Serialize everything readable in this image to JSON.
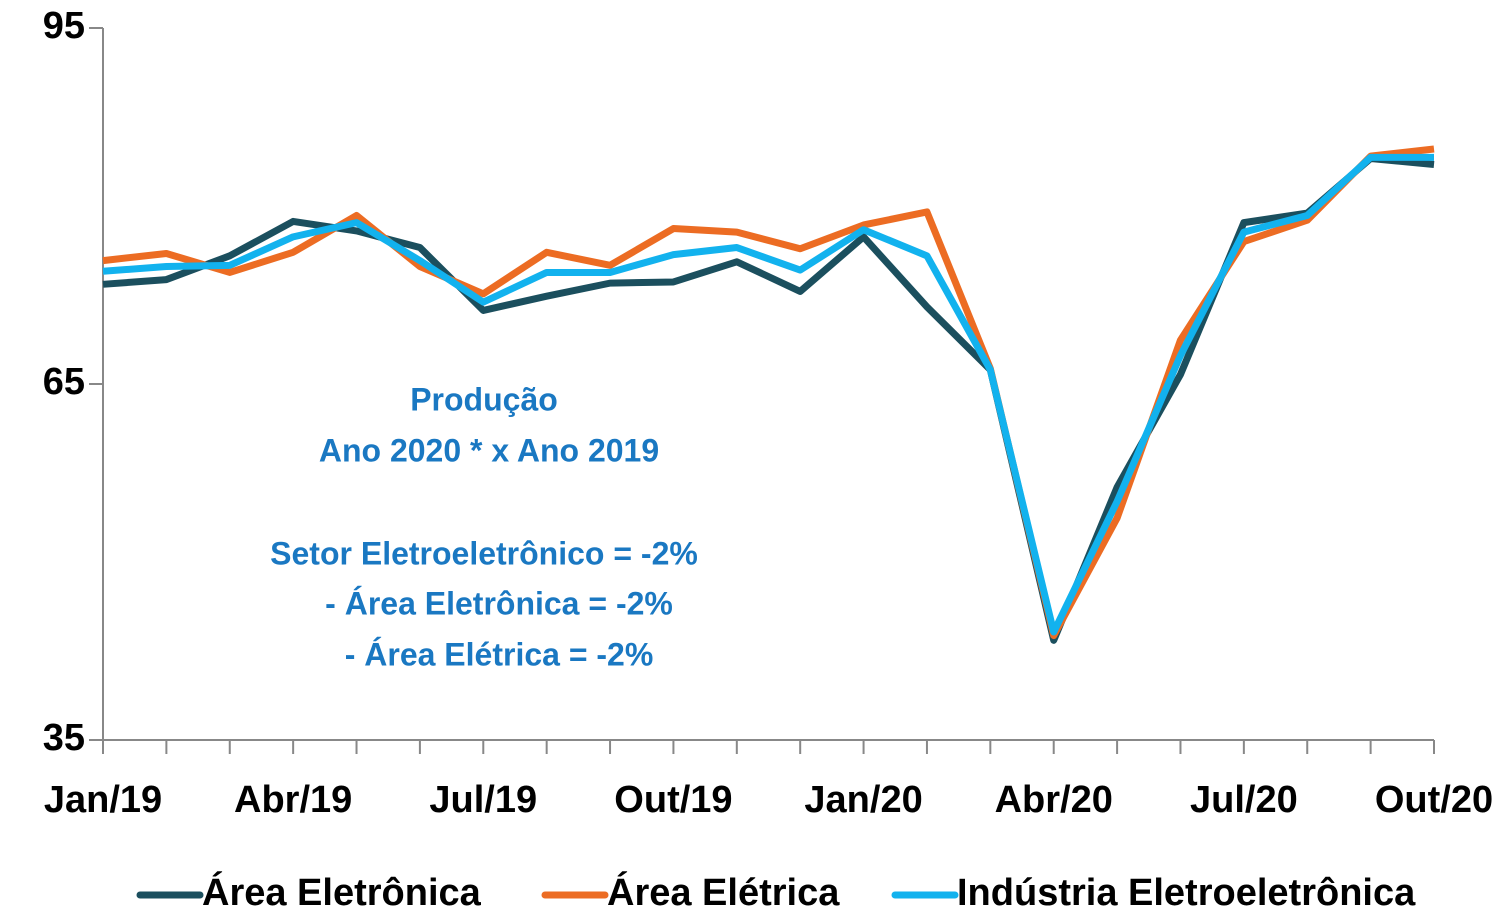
{
  "chart_data": {
    "type": "line",
    "categories": [
      "Jan/19",
      null,
      null,
      "Abr/19",
      null,
      null,
      "Jul/19",
      null,
      null,
      "Out/19",
      null,
      null,
      "Jan/20",
      null,
      null,
      "Abr/20",
      null,
      null,
      "Jul/20",
      null,
      null,
      "Out/20"
    ],
    "series": [
      {
        "name": "Área Eletrônica",
        "color": "#1b4f5e",
        "values": [
          73.4,
          73.8,
          75.8,
          78.7,
          77.9,
          76.5,
          71.2,
          72.4,
          73.5,
          73.6,
          75.3,
          72.8,
          77.4,
          71.5,
          66.2,
          43.4,
          56.3,
          65.8,
          78.6,
          79.4,
          84.0,
          83.5
        ]
      },
      {
        "name": "Área Elétrica",
        "color": "#ec6c23",
        "values": [
          75.4,
          76.0,
          74.4,
          76.1,
          79.2,
          74.9,
          72.6,
          76.1,
          75.0,
          78.1,
          77.8,
          76.4,
          78.4,
          79.5,
          66.3,
          43.8,
          53.7,
          68.7,
          77.0,
          78.8,
          84.2,
          84.8
        ]
      },
      {
        "name": "Indústria Eletroeletrônica",
        "color": "#12b2ee",
        "values": [
          74.5,
          74.9,
          75.0,
          77.4,
          78.6,
          75.4,
          71.9,
          74.4,
          74.4,
          75.9,
          76.5,
          74.6,
          78.0,
          75.8,
          66.2,
          44.1,
          55.1,
          67.4,
          77.8,
          79.2,
          84.1,
          84.1
        ]
      }
    ],
    "ylim": [
      35,
      95
    ],
    "yticks": [
      35,
      65,
      95
    ],
    "annotation": [
      "Produção",
      "Ano 2020 * x Ano 2019",
      "Setor Eletroeletrônico = -2%",
      "- Área Eletrônica = -2%",
      "- Área Elétrica = -2%"
    ],
    "legend": "bottom"
  }
}
